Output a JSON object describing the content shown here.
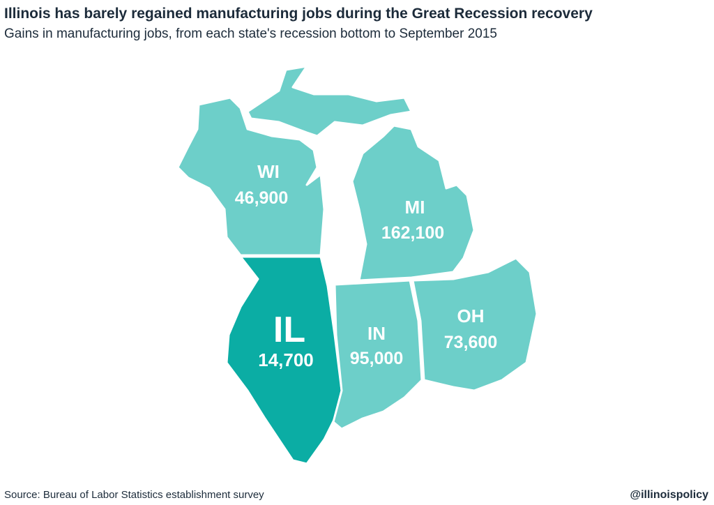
{
  "header": {
    "title": "Illinois has barely regained manufacturing jobs during the Great Recession recovery",
    "subtitle": "Gains in manufacturing jobs, from each state's recession bottom to September 2015"
  },
  "states": [
    {
      "label": "WI",
      "value": "46,900"
    },
    {
      "label": "MI",
      "value": "162,100"
    },
    {
      "label": "IL",
      "value": "14,700"
    },
    {
      "label": "IN",
      "value": "95,000"
    },
    {
      "label": "OH",
      "value": "73,600"
    }
  ],
  "footer": {
    "source": "Source: Bureau of Labor Statistics establishment survey",
    "handle": "@illinoispolicy"
  }
}
